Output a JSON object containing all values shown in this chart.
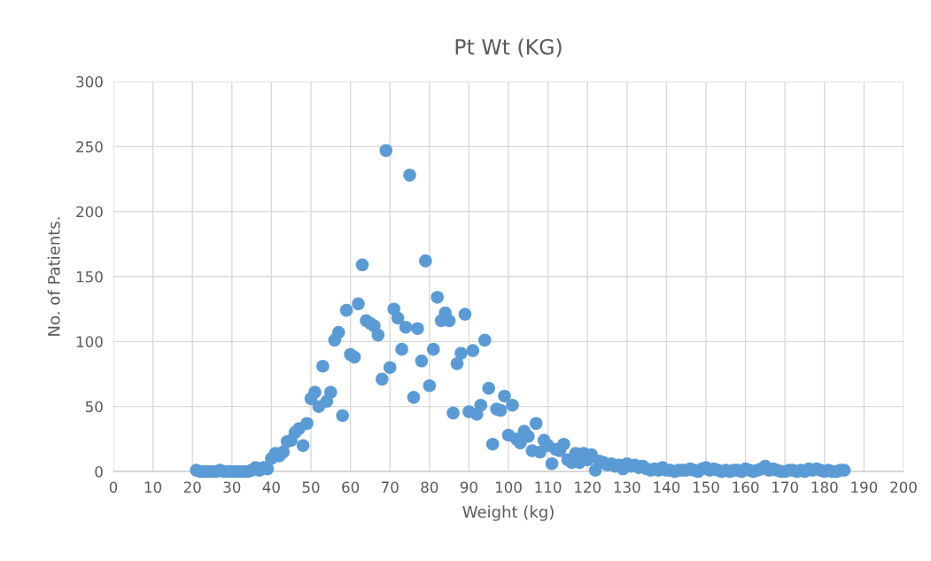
{
  "chart_data": {
    "type": "scatter",
    "title": "Pt Wt (KG)",
    "xlabel": "Weight (kg)",
    "ylabel": "No. of Patients.",
    "x": [
      21,
      22,
      23,
      24,
      25,
      26,
      27,
      28,
      29,
      30,
      31,
      32,
      33,
      34,
      35,
      36,
      37,
      38,
      39,
      40,
      41,
      42,
      43,
      44,
      45,
      46,
      47,
      48,
      49,
      50,
      51,
      52,
      53,
      54,
      55,
      56,
      57,
      58,
      59,
      60,
      61,
      62,
      63,
      64,
      65,
      66,
      67,
      68,
      69,
      70,
      71,
      72,
      73,
      74,
      75,
      76,
      77,
      78,
      79,
      80,
      81,
      82,
      83,
      84,
      85,
      86,
      87,
      88,
      89,
      90,
      91,
      92,
      93,
      94,
      95,
      96,
      97,
      98,
      99,
      100,
      101,
      102,
      103,
      104,
      105,
      106,
      107,
      108,
      109,
      110,
      111,
      112,
      113,
      114,
      115,
      116,
      117,
      118,
      119,
      120,
      121,
      122,
      123,
      124,
      125,
      126,
      127,
      128,
      129,
      130,
      131,
      132,
      133,
      134,
      135,
      136,
      137,
      138,
      139,
      140,
      141,
      142,
      143,
      144,
      145,
      146,
      147,
      148,
      149,
      150,
      151,
      152,
      153,
      154,
      155,
      156,
      157,
      158,
      159,
      160,
      161,
      162,
      163,
      164,
      165,
      166,
      167,
      168,
      169,
      170,
      171,
      172,
      173,
      174,
      175,
      176,
      177,
      178,
      179,
      180,
      181,
      182,
      183,
      184,
      185
    ],
    "values": [
      1,
      0,
      0,
      0,
      0,
      0,
      1,
      0,
      0,
      0,
      0,
      0,
      0,
      0,
      1,
      3,
      1,
      3,
      2,
      10,
      14,
      12,
      15,
      23,
      24,
      30,
      33,
      20,
      37,
      56,
      61,
      50,
      81,
      54,
      61,
      101,
      107,
      43,
      124,
      90,
      88,
      129,
      159,
      116,
      114,
      112,
      105,
      71,
      247,
      80,
      125,
      118,
      94,
      111,
      228,
      57,
      110,
      85,
      162,
      66,
      94,
      134,
      116,
      122,
      116,
      45,
      83,
      91,
      121,
      46,
      93,
      44,
      51,
      101,
      64,
      21,
      48,
      47,
      58,
      28,
      51,
      25,
      22,
      31,
      27,
      16,
      37,
      15,
      24,
      20,
      6,
      17,
      16,
      21,
      9,
      7,
      14,
      7,
      14,
      9,
      13,
      1,
      8,
      7,
      5,
      6,
      4,
      5,
      2,
      6,
      4,
      5,
      3,
      4,
      2,
      1,
      2,
      1,
      3,
      1,
      1,
      0,
      1,
      1,
      1,
      2,
      1,
      0,
      2,
      3,
      1,
      2,
      1,
      0,
      1,
      0,
      1,
      1,
      0,
      2,
      1,
      0,
      1,
      2,
      4,
      1,
      2,
      1,
      0,
      0,
      1,
      1,
      0,
      1,
      0,
      2,
      1,
      2,
      1,
      0,
      1,
      0,
      0,
      1,
      1
    ],
    "color": "#5b9bd5",
    "marker": "circle",
    "xlim": [
      0,
      200
    ],
    "ylim": [
      0,
      300
    ],
    "xticks": [
      0,
      10,
      20,
      30,
      40,
      50,
      60,
      70,
      80,
      90,
      100,
      110,
      120,
      130,
      140,
      150,
      160,
      170,
      180,
      190,
      200
    ],
    "yticks": [
      0,
      50,
      100,
      150,
      200,
      250,
      300
    ],
    "grid": true
  }
}
